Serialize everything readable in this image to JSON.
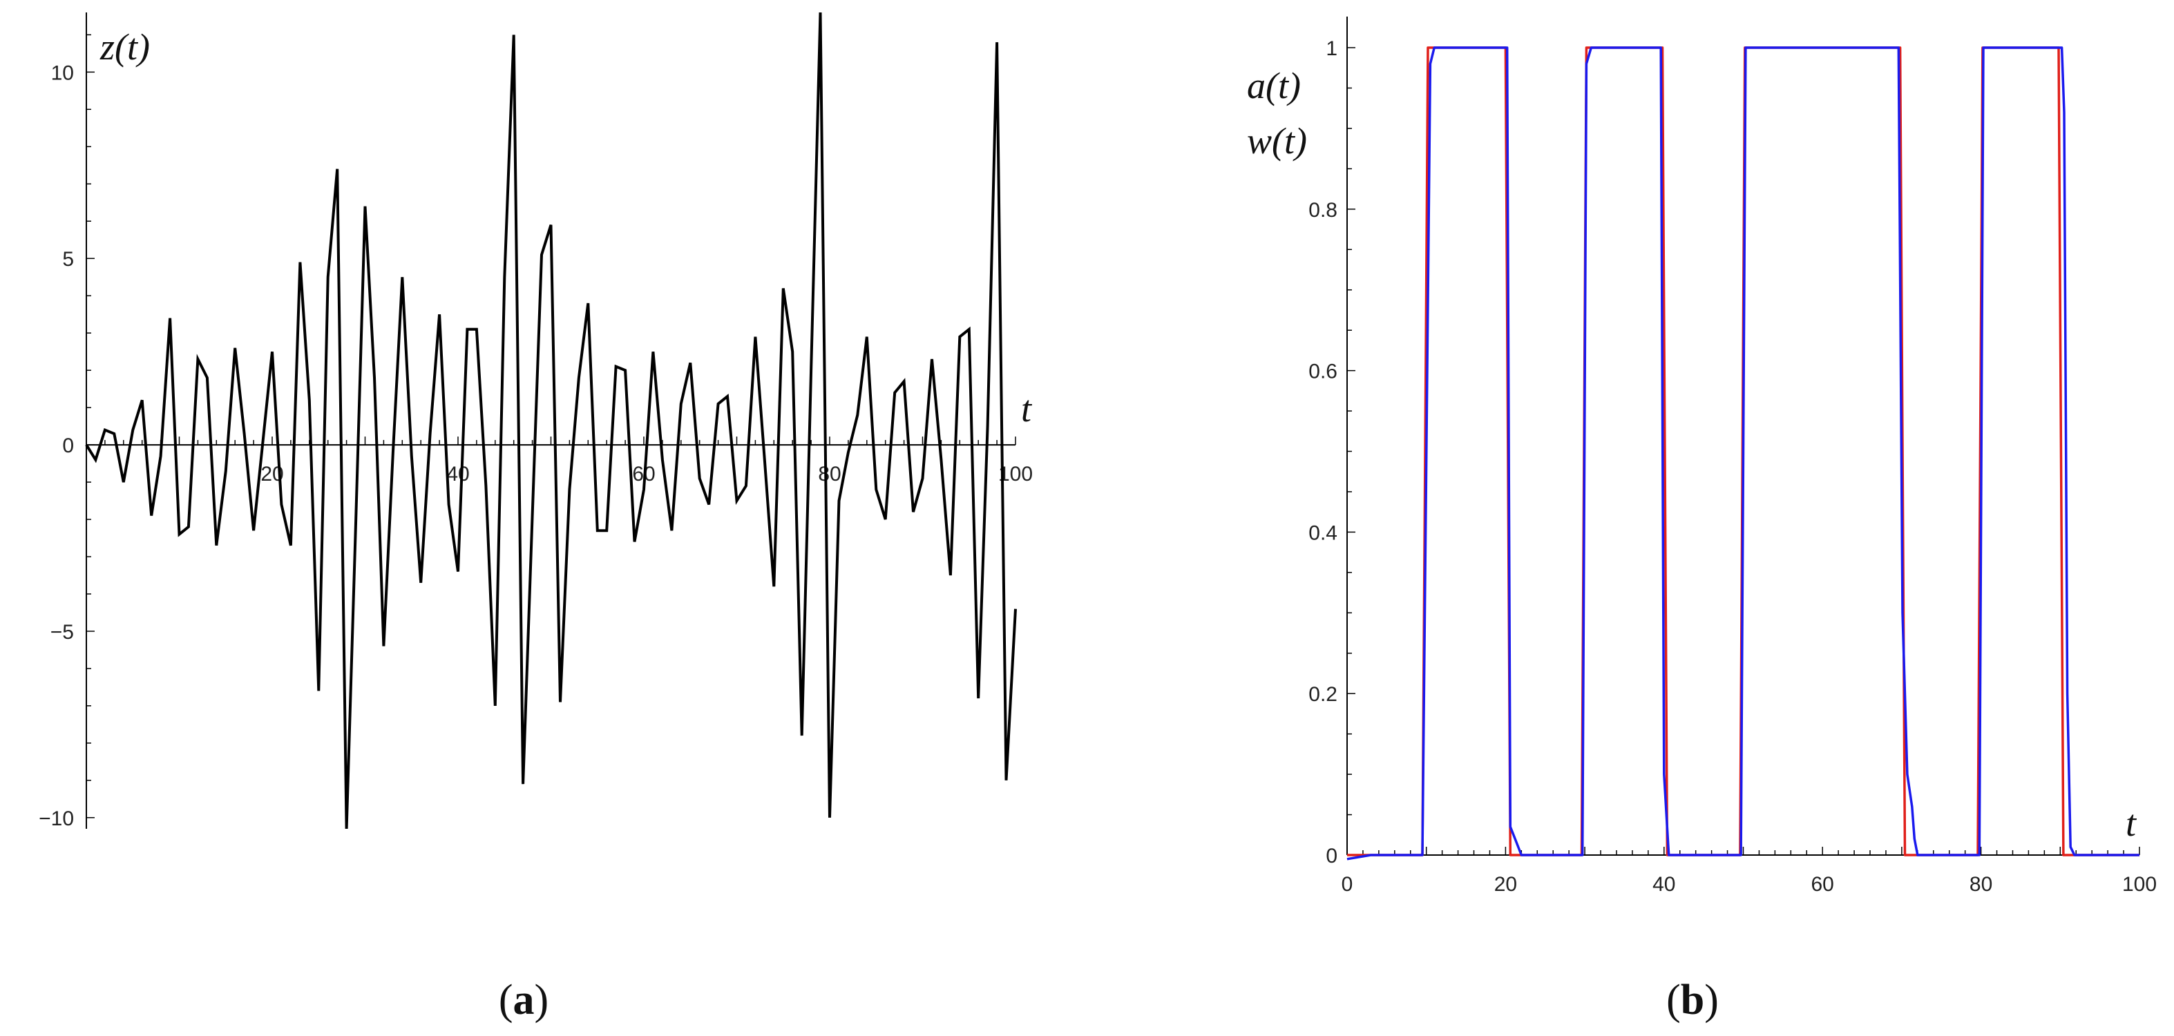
{
  "chart_data": [
    {
      "type": "line",
      "panel": "a",
      "panel_label": {
        "open": "(",
        "letter": "a",
        "close": ")"
      },
      "ylabel": "z(t)",
      "xlabel": "t",
      "xlim": [
        0,
        100
      ],
      "ylim": [
        -10.3,
        11.6
      ],
      "x_ticks": [
        20,
        40,
        60,
        80,
        100
      ],
      "y_ticks": [
        -10,
        -5,
        0,
        5,
        10
      ],
      "x_tick_labels": [
        "20",
        "40",
        "60",
        "80",
        "100"
      ],
      "y_tick_labels": [
        "−10",
        "−5",
        "0",
        "5",
        "10"
      ],
      "grid": false,
      "series": [
        {
          "color": "#000000",
          "x": [
            0,
            1,
            2,
            3,
            4,
            5,
            6,
            7,
            8,
            9,
            10,
            11,
            12,
            13,
            14,
            15,
            16,
            17,
            18,
            19,
            20,
            21,
            22,
            23,
            24,
            25,
            26,
            27,
            28,
            29,
            30,
            31,
            32,
            33,
            34,
            35,
            36,
            37,
            38,
            39,
            40,
            41,
            42,
            43,
            44,
            45,
            46,
            47,
            48,
            49,
            50,
            51,
            52,
            53,
            54,
            55,
            56,
            57,
            58,
            59,
            60,
            61,
            62,
            63,
            64,
            65,
            66,
            67,
            68,
            69,
            70,
            71,
            72,
            73,
            74,
            75,
            76,
            77,
            78,
            79,
            80,
            81,
            82,
            83,
            84,
            85,
            86,
            87,
            88,
            89,
            90,
            91,
            92,
            93,
            94,
            95,
            96,
            97,
            98,
            99,
            100
          ],
          "y": [
            0,
            -0.4,
            0.4,
            0.3,
            -1.0,
            0.4,
            1.2,
            -1.9,
            -0.3,
            3.4,
            -2.4,
            -2.2,
            2.3,
            1.8,
            -2.7,
            -0.7,
            2.6,
            0.3,
            -2.3,
            0.1,
            2.5,
            -1.6,
            -2.7,
            4.9,
            1.2,
            -6.6,
            4.5,
            7.4,
            -10.3,
            -2.1,
            6.4,
            1.8,
            -5.4,
            -0.2,
            4.5,
            -0.3,
            -3.7,
            0.3,
            3.5,
            -1.6,
            -3.4,
            3.1,
            3.1,
            -1.1,
            -7.0,
            4.5,
            11.0,
            -9.1,
            -1.9,
            5.1,
            5.9,
            -6.9,
            -1.2,
            1.8,
            3.8,
            -2.3,
            -2.3,
            2.1,
            2.0,
            -2.6,
            -1.2,
            2.5,
            -0.4,
            -2.3,
            1.1,
            2.2,
            -0.9,
            -1.6,
            1.1,
            1.3,
            -1.5,
            -1.1,
            2.9,
            -0.4,
            -3.8,
            4.2,
            2.5,
            -7.8,
            2.0,
            11.6,
            -10.0,
            -1.5,
            -0.2,
            0.8,
            2.9,
            -1.2,
            -2.0,
            1.4,
            1.7,
            -1.8,
            -0.9,
            2.3,
            -0.4,
            -3.5,
            2.9,
            3.1,
            -6.8,
            0.5,
            10.8,
            -9.0,
            -4.4
          ]
        }
      ]
    },
    {
      "type": "line",
      "panel": "b",
      "panel_label": {
        "open": "(",
        "letter": "b",
        "close": ")"
      },
      "ylabel_lines": [
        "a(t)",
        "w(t)"
      ],
      "xlabel": "t",
      "xlim": [
        0,
        100
      ],
      "ylim": [
        0,
        1
      ],
      "x_ticks": [
        0,
        20,
        40,
        60,
        80,
        100
      ],
      "y_ticks": [
        0,
        0.2,
        0.4,
        0.6,
        0.8,
        1
      ],
      "x_tick_labels": [
        "0",
        "20",
        "40",
        "60",
        "80",
        "100"
      ],
      "y_tick_labels": [
        "0",
        "0.2",
        "0.4",
        "0.6",
        "0.8",
        "1"
      ],
      "grid": false,
      "series": [
        {
          "color": "#e0201a",
          "x": [
            0,
            9.5,
            10.2,
            20,
            20.6,
            29.6,
            30.2,
            39.8,
            40.4,
            49.6,
            50.2,
            69.8,
            70.4,
            79.6,
            80.2,
            89.8,
            90.4,
            100
          ],
          "y": [
            0,
            0,
            1,
            1,
            0,
            0,
            1,
            1,
            0,
            0,
            1,
            1,
            0,
            0,
            1,
            1,
            0,
            0
          ]
        },
        {
          "color": "#1a1aee",
          "x": [
            0,
            3,
            9.5,
            10.5,
            11,
            20.2,
            20.6,
            21.2,
            22,
            29.7,
            30.2,
            30.8,
            39.6,
            40,
            40.6,
            49.7,
            50.3,
            69.6,
            70.1,
            70.7,
            71.3,
            71.6,
            72,
            79.8,
            80.3,
            90.2,
            90.5,
            90.9,
            91.3,
            91.8,
            100
          ],
          "y": [
            -0.005,
            0,
            0,
            0.98,
            1,
            1,
            0.035,
            0.02,
            0,
            0,
            0.98,
            1,
            1,
            0.1,
            0,
            0,
            1,
            1,
            0.3,
            0.1,
            0.06,
            0.02,
            0,
            0,
            1,
            1,
            0.92,
            0.2,
            0.01,
            0,
            0
          ]
        }
      ]
    }
  ]
}
